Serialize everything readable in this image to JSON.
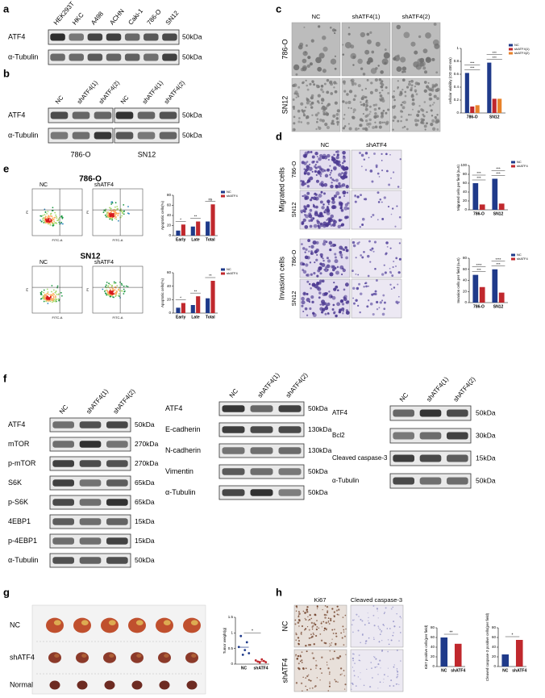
{
  "panels": {
    "a": {
      "letter": "a",
      "lanes": [
        "HEK293T",
        "HKC",
        "A498",
        "ACHN",
        "Caki-1",
        "786-O",
        "SN12"
      ],
      "rows": [
        {
          "name": "ATF4",
          "size": "50kDa"
        },
        {
          "name": "α-Tubulin",
          "size": "50kDa"
        }
      ]
    },
    "b": {
      "letter": "b",
      "lanes": [
        "NC",
        "shATF4(1)",
        "shATF4(2)",
        "NC",
        "shATF4(1)",
        "shATF4(2)"
      ],
      "groups": [
        "786-O",
        "SN12"
      ],
      "rows": [
        {
          "name": "ATF4",
          "size": "50kDa"
        },
        {
          "name": "α-Tubulin",
          "size": "50kDa"
        }
      ]
    },
    "c": {
      "letter": "c",
      "columns": [
        "NC",
        "shATF4(1)",
        "shATF4(2)"
      ],
      "rows": [
        "786-O",
        "SN12"
      ],
      "chart": {
        "type": "bar",
        "ylabel": "cellular viability (OD 450 nm)",
        "categories": [
          "786-O",
          "SN12"
        ],
        "series": [
          {
            "name": "NC",
            "color": "#1f3a8a",
            "values": [
              0.62,
              0.78
            ]
          },
          {
            "name": "shATF4(1)",
            "color": "#c0282d",
            "values": [
              0.1,
              0.22
            ]
          },
          {
            "name": "shATF4(2)",
            "color": "#e8822a",
            "values": [
              0.12,
              0.22
            ]
          }
        ],
        "ylim": [
          0,
          1
        ],
        "yticks": [
          0,
          0.2,
          0.4,
          0.6,
          0.8,
          1
        ],
        "annotations": [
          [
            "***",
            "***"
          ],
          [
            "***",
            "***"
          ]
        ]
      }
    },
    "d": {
      "letter": "d",
      "columns": [
        "NC",
        "shATF4"
      ],
      "groups": [
        {
          "name": "Migrated cells",
          "rows": [
            "786-O",
            "SN12"
          ]
        },
        {
          "name": "Invasion cells",
          "rows": [
            "786-O",
            "SN12"
          ]
        }
      ],
      "charts": [
        {
          "type": "bar",
          "ylabel": "Migrated cells per field (n=5)",
          "categories": [
            "786-O",
            "SN12"
          ],
          "series": [
            {
              "name": "NC",
              "color": "#1f3a8a",
              "values": [
                60,
                70
              ]
            },
            {
              "name": "shATF4",
              "color": "#c0282d",
              "values": [
                12,
                14
              ]
            }
          ],
          "ylim": [
            0,
            100
          ],
          "yticks": [
            0,
            20,
            40,
            60,
            80,
            100
          ],
          "annotations": [
            [
              "***",
              "***"
            ],
            [
              "***",
              "***"
            ]
          ]
        },
        {
          "type": "bar",
          "ylabel": "Invasion cells per field (n=5)",
          "categories": [
            "786-O",
            "SN12"
          ],
          "series": [
            {
              "name": "NC",
              "color": "#1f3a8a",
              "values": [
                50,
                60
              ]
            },
            {
              "name": "shATF4",
              "color": "#c0282d",
              "values": [
                28,
                18
              ]
            }
          ],
          "ylim": [
            0,
            80
          ],
          "yticks": [
            0,
            20,
            40,
            60,
            80
          ],
          "annotations": [
            [
              "***",
              "****"
            ],
            [
              "***",
              "****"
            ]
          ]
        }
      ]
    },
    "e": {
      "letter": "e",
      "xlabel": "FITC-A",
      "ylabel": "PI",
      "groups": [
        {
          "title": "786-O",
          "columns": [
            "NC",
            "shATF4"
          ],
          "chart": {
            "type": "bar",
            "ylabel": "Apoptotic cells(%)",
            "categories": [
              "Early",
              "Late",
              "Total"
            ],
            "series": [
              {
                "name": "NC",
                "color": "#1f3a8a",
                "values": [
                  10,
                  18,
                  28
                ]
              },
              {
                "name": "shATF4",
                "color": "#c0282d",
                "values": [
                  22,
                  28,
                  62
                ]
              }
            ],
            "ylim": [
              0,
              80
            ],
            "yticks": [
              0,
              20,
              40,
              60,
              80
            ],
            "annotations": [
              [
                "*"
              ],
              [
                "**"
              ],
              [
                "ns"
              ]
            ]
          }
        },
        {
          "title": "SN12",
          "columns": [
            "NC",
            "shATF4"
          ],
          "chart": {
            "type": "bar",
            "ylabel": "Apoptotic cells(%)",
            "categories": [
              "Early",
              "Late",
              "Total"
            ],
            "series": [
              {
                "name": "NC",
                "color": "#1f3a8a",
                "values": [
                  8,
                  12,
                  22
                ]
              },
              {
                "name": "shATF4",
                "color": "#c0282d",
                "values": [
                  15,
                  25,
                  48
                ]
              }
            ],
            "ylim": [
              0,
              60
            ],
            "yticks": [
              0,
              20,
              40,
              60
            ],
            "annotations": [
              [
                "*"
              ],
              [
                "**"
              ],
              [
                "**"
              ]
            ]
          }
        }
      ]
    },
    "f": {
      "letter": "f",
      "blots": [
        {
          "lanes": [
            "NC",
            "shATF4(1)",
            "shATF4(2)"
          ],
          "rows": [
            {
              "name": "ATF4",
              "size": "50kDa"
            },
            {
              "name": "mTOR",
              "size": "270kDa"
            },
            {
              "name": "p-mTOR",
              "size": "270kDa"
            },
            {
              "name": "S6K",
              "size": "65kDa"
            },
            {
              "name": "p-S6K",
              "size": "65kDa"
            },
            {
              "name": "4EBP1",
              "size": "15kDa"
            },
            {
              "name": "p-4EBP1",
              "size": "15kDa"
            },
            {
              "name": "α-Tubulin",
              "size": "50kDa"
            }
          ]
        },
        {
          "lanes": [
            "NC",
            "shATF4(1)",
            "shATF4(2)"
          ],
          "rows": [
            {
              "name": "ATF4",
              "size": "50kDa"
            },
            {
              "name": "E-cadherin",
              "size": "130kDa"
            },
            {
              "name": "N-cadherin",
              "size": "130kDa"
            },
            {
              "name": "Vimentin",
              "size": "50kDa"
            },
            {
              "name": "α-Tubulin",
              "size": "50kDa"
            }
          ]
        },
        {
          "lanes": [
            "NC",
            "shATF4(1)",
            "shATF4(2)"
          ],
          "rows": [
            {
              "name": "ATF4",
              "size": "50kDa"
            },
            {
              "name": "Bcl2",
              "size": "30kDa"
            },
            {
              "name": "Cleaved caspase-3",
              "size": "15kDa"
            },
            {
              "name": "α-Tubulin",
              "size": "50kDa"
            }
          ]
        }
      ]
    },
    "g": {
      "letter": "g",
      "rows": [
        "NC",
        "shATF4",
        "Normal"
      ],
      "chart": {
        "type": "scatter",
        "ylabel": "Tumor weight(g)",
        "categories": [
          "NC",
          "shATF4"
        ],
        "colors": [
          "#1f3a8a",
          "#c0282d"
        ],
        "values": [
          [
            0.55,
            0.9,
            0.3,
            0.45,
            0.7,
            0.35
          ],
          [
            0.12,
            0.08,
            0.05,
            0.15,
            0.1,
            0.06
          ]
        ],
        "ylim": [
          0,
          1.5
        ],
        "yticks": [
          0,
          0.5,
          1,
          1.5
        ],
        "annotation": "*"
      }
    },
    "h": {
      "letter": "h",
      "columns": [
        "Ki67",
        "Cleaved caspase-3"
      ],
      "rows": [
        "NC",
        "shATF4"
      ],
      "charts": [
        {
          "type": "bar",
          "ylabel": "Ki67 positive cells(per field)",
          "categories": [
            "NC",
            "shATF4"
          ],
          "values": [
            60,
            47
          ],
          "colors": [
            "#1f3a8a",
            "#c0282d"
          ],
          "ylim": [
            0,
            80
          ],
          "yticks": [
            0,
            20,
            40,
            60,
            80
          ],
          "annotation": "**"
        },
        {
          "type": "bar",
          "ylabel": "Cleaved caspase-3 positive cells(per field)",
          "categories": [
            "NC",
            "shATF4"
          ],
          "values": [
            25,
            55
          ],
          "colors": [
            "#1f3a8a",
            "#c0282d"
          ],
          "ylim": [
            0,
            80
          ],
          "yticks": [
            0,
            20,
            40,
            60,
            80
          ],
          "annotation": "*"
        }
      ]
    }
  }
}
